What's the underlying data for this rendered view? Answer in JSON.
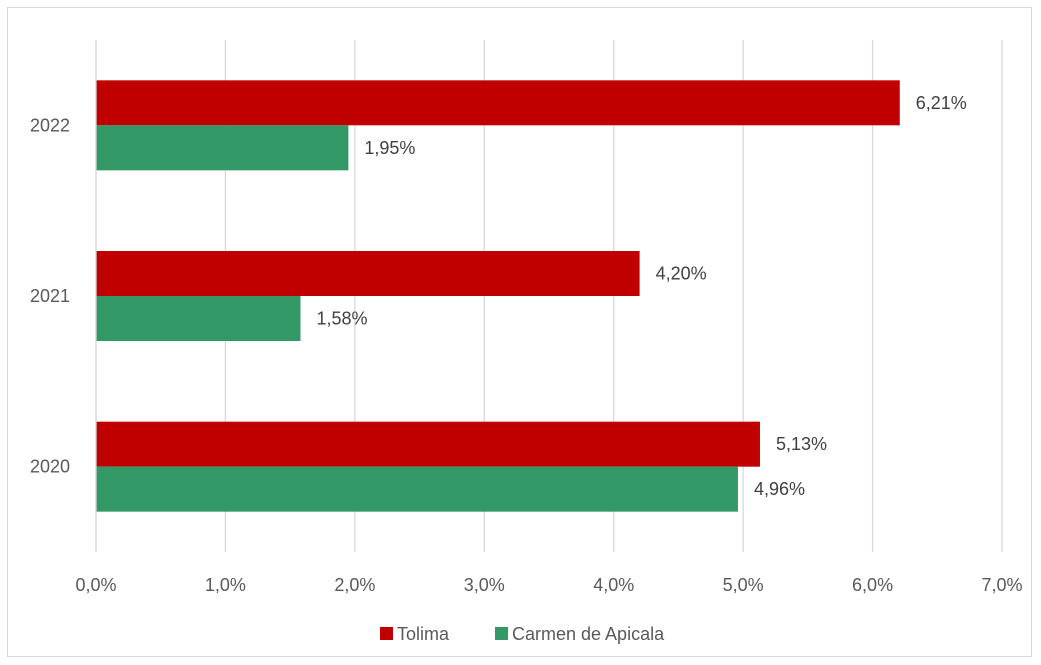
{
  "chart_data": {
    "type": "bar",
    "orientation": "horizontal",
    "categories": [
      "2020",
      "2021",
      "2022"
    ],
    "series": [
      {
        "name": "Tolima",
        "values": [
          5.13,
          4.2,
          6.21
        ],
        "labels": [
          "5,13%",
          "4,20%",
          "6,21%"
        ],
        "color": "#c00000"
      },
      {
        "name": "Carmen de Apicala",
        "values": [
          4.96,
          1.58,
          1.95
        ],
        "labels": [
          "4,96%",
          "1,58%",
          "1,95%"
        ],
        "color": "#339966"
      }
    ],
    "xlim": [
      0,
      7
    ],
    "xticks": [
      0,
      1,
      2,
      3,
      4,
      5,
      6,
      7
    ],
    "xtick_labels": [
      "0,0%",
      "1,0%",
      "2,0%",
      "3,0%",
      "4,0%",
      "5,0%",
      "6,0%",
      "7,0%"
    ],
    "grid": "vertical",
    "legend_position": "bottom",
    "title": "",
    "xlabel": "",
    "ylabel": ""
  }
}
